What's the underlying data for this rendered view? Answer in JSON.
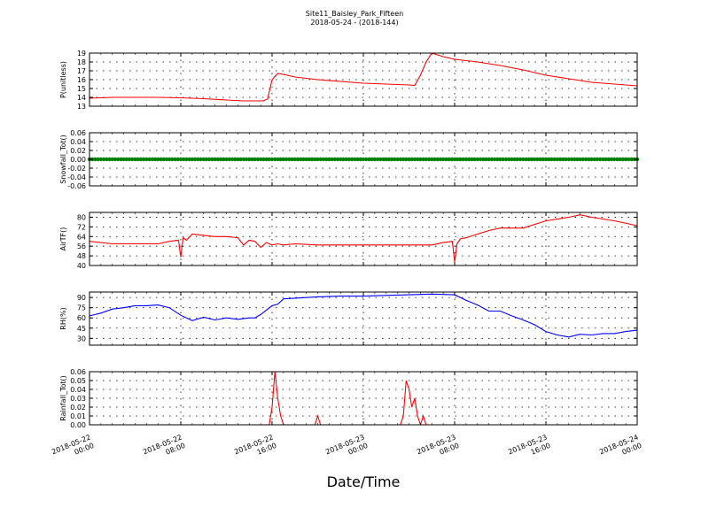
{
  "figure": {
    "title_line1": "Site11_Baisley_Park_Fifteen",
    "title_line2": "2018-05-24 - (2018-144)",
    "xlabel": "Date/Time"
  },
  "colors": {
    "red": "#ff0000",
    "green": "#008000",
    "blue": "#0000ff",
    "axis": "#000000"
  },
  "chart_data": [
    {
      "type": "line",
      "ylabel": "P(unitless)",
      "ylim": [
        13,
        19
      ],
      "yticks": [
        13,
        14,
        15,
        16,
        17,
        18,
        19
      ],
      "ytick_labels": [
        "13",
        "14",
        "15",
        "16",
        "17",
        "18",
        "19"
      ],
      "grid": true,
      "series": [
        {
          "color": "#ff0000",
          "x": [
            0,
            2,
            4,
            6,
            8,
            10,
            12,
            13.5,
            14.5,
            15.2,
            15.6,
            16,
            16.5,
            17,
            18,
            20,
            22,
            24,
            26,
            28,
            28.5,
            29,
            29.5,
            30,
            30.5,
            31,
            32,
            34,
            36,
            38,
            40,
            42,
            44,
            46,
            48
          ],
          "y": [
            13.9,
            14.0,
            14.0,
            14.0,
            13.95,
            13.85,
            13.7,
            13.6,
            13.6,
            13.6,
            13.8,
            16.0,
            16.7,
            16.6,
            16.3,
            16.0,
            15.8,
            15.6,
            15.5,
            15.4,
            15.35,
            16.5,
            18.0,
            19.0,
            18.8,
            18.6,
            18.3,
            18.0,
            17.6,
            17.1,
            16.5,
            16.1,
            15.7,
            15.5,
            15.3
          ]
        }
      ]
    },
    {
      "type": "line",
      "ylabel": "Snowfall_Tot()",
      "ylim": [
        -0.06,
        0.06
      ],
      "yticks": [
        -0.06,
        -0.04,
        -0.02,
        0.0,
        0.02,
        0.04,
        0.06
      ],
      "ytick_labels": [
        "-0.06",
        "-0.04",
        "-0.02",
        "0.00",
        "0.02",
        "0.04",
        "0.06"
      ],
      "grid": true,
      "series": [
        {
          "color": "#008000",
          "marker": "circle",
          "x": [
            0,
            48
          ],
          "y": [
            0,
            0
          ]
        }
      ]
    },
    {
      "type": "line",
      "ylabel": "AirTF()",
      "ylim": [
        40,
        84
      ],
      "yticks": [
        40,
        48,
        56,
        64,
        72,
        80
      ],
      "ytick_labels": [
        "40",
        "48",
        "56",
        "64",
        "72",
        "80"
      ],
      "grid": true,
      "series": [
        {
          "color": "#ff0000",
          "x": [
            0,
            2,
            4,
            6,
            7,
            7.8,
            8.0,
            8.2,
            8.5,
            9,
            10,
            11,
            12,
            13,
            13.5,
            14,
            14.5,
            15,
            15.5,
            16,
            16.5,
            17,
            18,
            20,
            22,
            24,
            26,
            28,
            30,
            31,
            31.8,
            32.0,
            32.2,
            32.5,
            33,
            34,
            35,
            36,
            38,
            40,
            42,
            43,
            44,
            46,
            48
          ],
          "y": [
            60,
            58,
            58,
            58,
            60,
            61,
            47,
            63,
            61,
            66,
            65,
            64,
            64,
            63,
            57,
            61,
            60,
            55,
            59,
            57,
            58,
            57,
            58,
            57,
            57,
            57,
            57,
            57,
            57,
            59,
            60,
            43,
            58,
            62,
            63,
            66,
            69,
            71,
            71,
            77,
            80,
            82,
            80,
            77,
            73
          ]
        }
      ]
    },
    {
      "type": "line",
      "ylabel": "RH(%)",
      "ylim": [
        20,
        98
      ],
      "yticks": [
        30,
        45,
        60,
        75,
        90
      ],
      "ytick_labels": [
        "30",
        "45",
        "60",
        "75",
        "90"
      ],
      "grid": true,
      "series": [
        {
          "color": "#0000ff",
          "x": [
            0,
            1,
            2,
            3,
            4,
            5,
            6,
            7,
            8,
            9,
            10,
            11,
            12,
            13,
            14,
            14.5,
            15,
            16,
            16.5,
            17,
            18,
            20,
            22,
            24,
            26,
            28,
            30,
            32,
            33,
            34,
            35,
            36,
            37,
            38,
            39,
            40,
            41,
            42,
            43,
            44,
            45,
            46,
            47,
            48
          ],
          "y": [
            63,
            67,
            73,
            75,
            78,
            78,
            79,
            75,
            64,
            56,
            61,
            57,
            60,
            58,
            60,
            60,
            65,
            78,
            80,
            88,
            89,
            91,
            92,
            92,
            93,
            94,
            95,
            94,
            86,
            79,
            70,
            70,
            63,
            57,
            50,
            40,
            35,
            32,
            36,
            35,
            37,
            37,
            40,
            42
          ]
        }
      ]
    },
    {
      "type": "line",
      "ylabel": "Rainfall_Tot()",
      "ylim": [
        0,
        0.06
      ],
      "yticks": [
        0.0,
        0.01,
        0.02,
        0.03,
        0.04,
        0.05,
        0.06
      ],
      "ytick_labels": [
        "0.00",
        "0.01",
        "0.02",
        "0.03",
        "0.04",
        "0.05",
        "0.06"
      ],
      "grid": true,
      "series": [
        {
          "color": "#ff0000",
          "x": [
            0,
            15.75,
            16,
            16.25,
            16.5,
            16.75,
            17,
            17.25,
            19.75,
            20,
            20.25,
            27.25,
            27.5,
            27.75,
            28,
            28.25,
            28.5,
            28.75,
            29,
            29.25,
            29.5,
            29.75,
            48
          ],
          "y": [
            0,
            0,
            0.02,
            0.06,
            0.03,
            0.01,
            0,
            0,
            0,
            0.01,
            0,
            0,
            0.01,
            0.05,
            0.04,
            0.02,
            0.03,
            0.01,
            0,
            0.01,
            0,
            0,
            0
          ]
        }
      ]
    }
  ],
  "x_axis": {
    "min": 0,
    "max": 48,
    "unit": "hours since 2018-05-22 00:00",
    "ticks": [
      0,
      8,
      16,
      24,
      32,
      40,
      48
    ],
    "tick_labels": [
      [
        "2018-05-22",
        "00:00"
      ],
      [
        "2018-05-22",
        "08:00"
      ],
      [
        "2018-05-22",
        "16:00"
      ],
      [
        "2018-05-23",
        "00:00"
      ],
      [
        "2018-05-23",
        "08:00"
      ],
      [
        "2018-05-23",
        "16:00"
      ],
      [
        "2018-05-24",
        "00:00"
      ]
    ]
  }
}
